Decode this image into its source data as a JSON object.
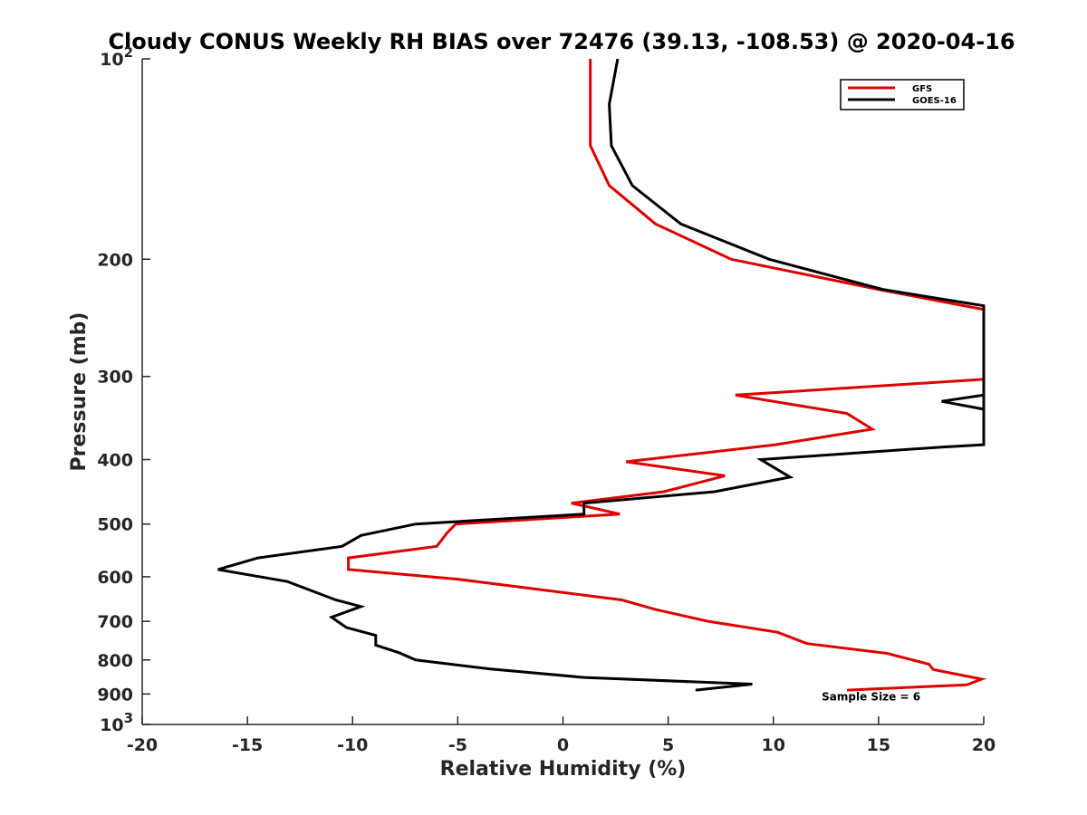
{
  "chart_data": {
    "type": "line",
    "title": "Cloudy CONUS Weekly RH BIAS over 72476 (39.13, -108.53) @ 2020-04-16",
    "xlabel": "Relative Humidity (%)",
    "ylabel": "Pressure (mb)",
    "xlim": [
      -20,
      20
    ],
    "ylim": [
      100,
      1000
    ],
    "y_scale": "log",
    "y_reversed": true,
    "grid": false,
    "legend_position": "top-right",
    "x_ticks": [
      -20,
      -15,
      -10,
      -5,
      0,
      5,
      10,
      15,
      20
    ],
    "x_tick_labels": [
      "-20",
      "-15",
      "-10",
      "-5",
      "0",
      "5",
      "10",
      "15",
      "20"
    ],
    "y_ticks": [
      {
        "value": 100,
        "base": "10",
        "exp": "2"
      },
      {
        "value": 200,
        "label": "200"
      },
      {
        "value": 300,
        "label": "300"
      },
      {
        "value": 400,
        "label": "400"
      },
      {
        "value": 500,
        "label": "500"
      },
      {
        "value": 600,
        "label": "600"
      },
      {
        "value": 700,
        "label": "700"
      },
      {
        "value": 800,
        "label": "800"
      },
      {
        "value": 900,
        "label": "900"
      },
      {
        "value": 1000,
        "base": "10",
        "exp": "3"
      }
    ],
    "series": [
      {
        "name": "GFS",
        "color": "#e00000",
        "points": [
          [
            1.3,
            100
          ],
          [
            1.3,
            117
          ],
          [
            1.3,
            135
          ],
          [
            2.2,
            155
          ],
          [
            4.4,
            177
          ],
          [
            8.0,
            200
          ],
          [
            15.0,
            222
          ],
          [
            20.0,
            238
          ],
          [
            20.0,
            303
          ],
          [
            8.2,
            320
          ],
          [
            13.5,
            341
          ],
          [
            14.7,
            360
          ],
          [
            10.1,
            380
          ],
          [
            3.0,
            403
          ],
          [
            7.7,
            423
          ],
          [
            4.8,
            447
          ],
          [
            0.4,
            465
          ],
          [
            2.7,
            483
          ],
          [
            -5.1,
            500
          ],
          [
            -5.5,
            515
          ],
          [
            -6.0,
            540
          ],
          [
            -10.2,
            562
          ],
          [
            -10.2,
            585
          ],
          [
            -5.0,
            605
          ],
          [
            2.8,
            650
          ],
          [
            4.4,
            672
          ],
          [
            6.9,
            700
          ],
          [
            10.2,
            727
          ],
          [
            11.6,
            756
          ],
          [
            15.4,
            782
          ],
          [
            17.4,
            812
          ],
          [
            17.6,
            827
          ],
          [
            19.9,
            855
          ],
          [
            19.2,
            872
          ],
          [
            13.5,
            888
          ]
        ]
      },
      {
        "name": "GOES-16",
        "color": "#000000",
        "points": [
          [
            2.6,
            100
          ],
          [
            2.2,
            117
          ],
          [
            2.3,
            135
          ],
          [
            3.3,
            155
          ],
          [
            5.6,
            177
          ],
          [
            9.8,
            200
          ],
          [
            15.2,
            222
          ],
          [
            20.0,
            235
          ],
          [
            20.0,
            336
          ],
          [
            18.0,
            327
          ],
          [
            20.0,
            320
          ],
          [
            20.0,
            380
          ],
          [
            18.0,
            383
          ],
          [
            9.4,
            400
          ],
          [
            10.8,
            425
          ],
          [
            7.2,
            447
          ],
          [
            1.0,
            465
          ],
          [
            1.0,
            483
          ],
          [
            -7.0,
            500
          ],
          [
            -9.6,
            520
          ],
          [
            -10.5,
            540
          ],
          [
            -14.5,
            562
          ],
          [
            -16.4,
            585
          ],
          [
            -13.1,
            610
          ],
          [
            -10.8,
            650
          ],
          [
            -9.6,
            665
          ],
          [
            -11.0,
            690
          ],
          [
            -10.3,
            715
          ],
          [
            -8.9,
            735
          ],
          [
            -8.9,
            760
          ],
          [
            -7.8,
            780
          ],
          [
            -7.0,
            800
          ],
          [
            -3.5,
            825
          ],
          [
            1.0,
            850
          ],
          [
            9.0,
            870
          ],
          [
            6.3,
            888
          ]
        ]
      }
    ],
    "annotations": [
      {
        "text": "Sample Size = 6",
        "x": 12.3,
        "y": 920
      }
    ]
  }
}
